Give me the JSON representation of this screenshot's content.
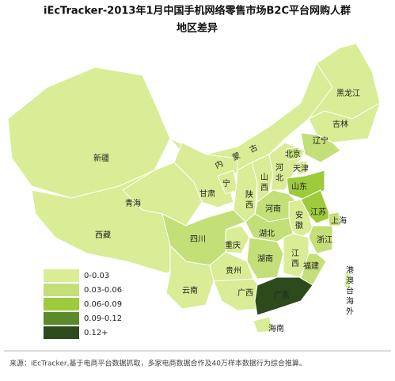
{
  "header": {
    "title_line1": "iEcTracker-2013年1月中国手机网络零售市场B2C平台网购人群",
    "title_line2": "地区差异"
  },
  "regions": [
    {
      "name": "西藏",
      "color": "#d8ed95"
    },
    {
      "name": "新疆",
      "color": "#d8ed95"
    },
    {
      "name": "青海",
      "color": "#d8ed95"
    },
    {
      "name": "内蒙古",
      "color": "#d8ed95"
    },
    {
      "name": "黑龙江",
      "color": "#d8ed95"
    },
    {
      "name": "吉林",
      "color": "#d8ed95"
    },
    {
      "name": "辽宁",
      "color": "#c3df78"
    },
    {
      "name": "甘肃",
      "color": "#d8ed95"
    },
    {
      "name": "宁",
      "color": "#d8ed95"
    },
    {
      "name": "陕西",
      "color": "#d8ed95"
    },
    {
      "name": "山西",
      "color": "#d8ed95"
    },
    {
      "name": "河北",
      "color": "#d8ed95"
    },
    {
      "name": "北京",
      "color": "#c3df78"
    },
    {
      "name": "天津",
      "color": "#d8ed95"
    },
    {
      "name": "山东",
      "color": "#9dcb3c"
    },
    {
      "name": "河南",
      "color": "#c3df78"
    },
    {
      "name": "江苏",
      "color": "#9dcb3c"
    },
    {
      "name": "上海",
      "color": "#c3df78"
    },
    {
      "name": "安徽",
      "color": "#d8ed95"
    },
    {
      "name": "浙江",
      "color": "#c3df78"
    },
    {
      "name": "湖北",
      "color": "#c3df78"
    },
    {
      "name": "重庆",
      "color": "#d8ed95"
    },
    {
      "name": "四川",
      "color": "#c3df78"
    },
    {
      "name": "湖南",
      "color": "#c3df78"
    },
    {
      "name": "江西",
      "color": "#d8ed95"
    },
    {
      "name": "福建",
      "color": "#c3df78"
    },
    {
      "name": "贵州",
      "color": "#d8ed95"
    },
    {
      "name": "云南",
      "color": "#d8ed95"
    },
    {
      "name": "广西",
      "color": "#d8ed95"
    },
    {
      "name": "广东",
      "color": "#2c4a1c"
    },
    {
      "name": "海南",
      "color": "#d8ed95"
    },
    {
      "name": "港澳台海外",
      "color": "#d8ed95"
    }
  ],
  "legend": [
    {
      "label": "0-0.03",
      "color": "#d8ed95"
    },
    {
      "label": "0.03-0.06",
      "color": "#c3df78"
    },
    {
      "label": "0.06-0.09",
      "color": "#9dcb3c"
    },
    {
      "label": "0.09-0.12",
      "color": "#5b8a2b"
    },
    {
      "label": "0.12+",
      "color": "#2c4a1c"
    }
  ],
  "footer": {
    "source": "来源：iEcTracker,基于电商平台数据抓取，多家电商数据合作及40万样本数据行为综合推算。"
  }
}
